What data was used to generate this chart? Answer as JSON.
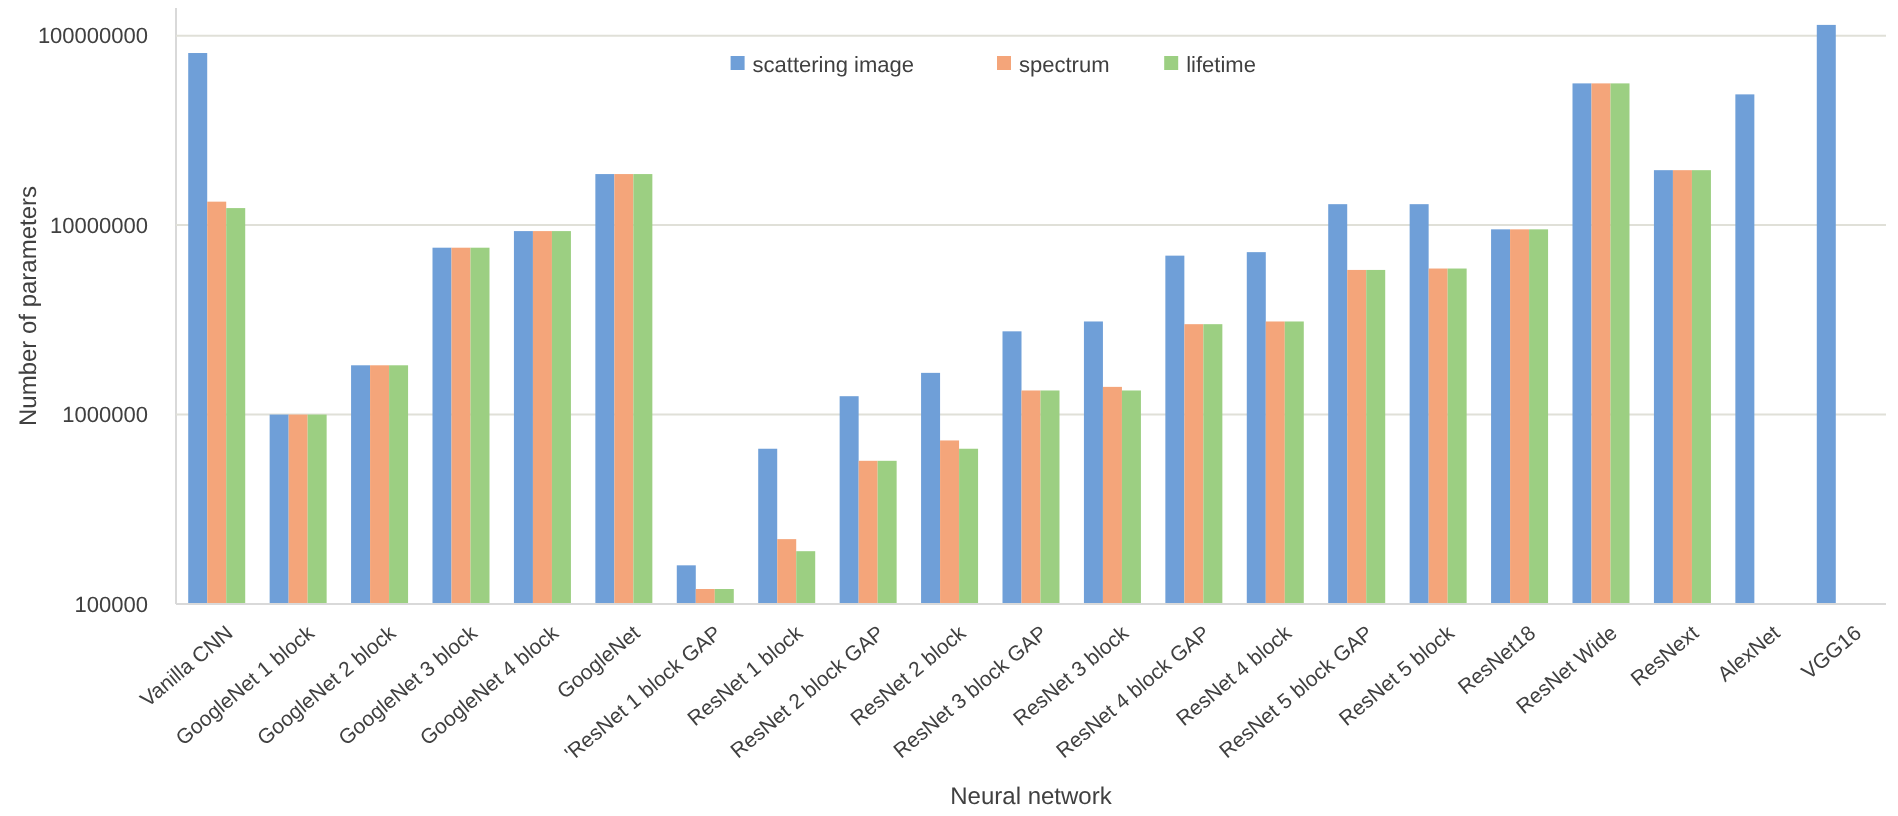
{
  "chart_data": {
    "type": "bar",
    "xlabel": "Neural network",
    "ylabel": "Number of parameters",
    "log": "y",
    "grid": "y",
    "legend": "top",
    "categories": [
      "Vanilla CNN",
      "GoogleNet 1 block",
      "GoogleNet 2 block",
      "GoogleNet 3 block",
      "GoogleNet 4 block",
      "GoogleNet",
      "'ResNet 1 block GAP",
      "ResNet 1 block",
      "ResNet 2 block GAP",
      "ResNet 2 block",
      "ResNet 3 block GAP",
      "ResNet 3 block",
      "ResNet 4 block GAP",
      "ResNet 4 block",
      "ResNet 5 block GAP",
      "ResNet 5 block",
      "ResNet18",
      "ResNet Wide",
      "ResNext",
      "AlexNet",
      "VGG16"
    ],
    "ylim": [
      100000,
      140000000
    ],
    "yticks": [
      100000,
      1000000,
      10000000,
      100000000
    ],
    "series": [
      {
        "name": "scattering image",
        "color": "#6f9fd8",
        "values": [
          81000000,
          1000000,
          1820000,
          7600000,
          9300000,
          18600000,
          160000,
          660000,
          1250000,
          1660000,
          2750000,
          3100000,
          6900000,
          7200000,
          12900000,
          12900000,
          9500000,
          56000000,
          19500000,
          49000000,
          114000000
        ]
      },
      {
        "name": "spectrum",
        "color": "#f4a57a",
        "values": [
          13300000,
          1000000,
          1820000,
          7600000,
          9300000,
          18600000,
          120000,
          220000,
          570000,
          730000,
          1340000,
          1400000,
          3000000,
          3100000,
          5800000,
          5900000,
          9500000,
          56000000,
          19500000,
          null,
          null
        ]
      },
      {
        "name": "lifetime",
        "color": "#9ccf82",
        "values": [
          12300000,
          1000000,
          1820000,
          7600000,
          9300000,
          18600000,
          120000,
          190000,
          570000,
          660000,
          1340000,
          1340000,
          3000000,
          3100000,
          5800000,
          5900000,
          9500000,
          56000000,
          19500000,
          null,
          null
        ]
      }
    ]
  }
}
